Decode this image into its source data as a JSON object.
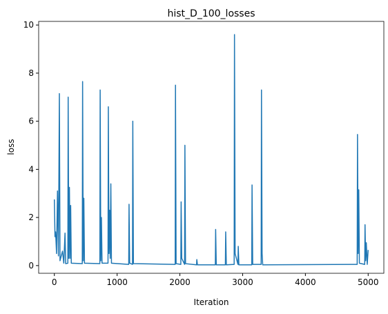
{
  "chart_data": {
    "type": "line",
    "title": "hist_D_100_losses",
    "xlabel": "Iteration",
    "ylabel": "loss",
    "color": "#1f77b4",
    "x": [
      0,
      10,
      20,
      35,
      50,
      65,
      80,
      90,
      130,
      150,
      170,
      180,
      215,
      220,
      230,
      240,
      250,
      260,
      270,
      445,
      450,
      460,
      470,
      480,
      725,
      730,
      740,
      750,
      760,
      855,
      860,
      870,
      880,
      890,
      900,
      910,
      1185,
      1190,
      1200,
      1245,
      1250,
      1260,
      1925,
      1930,
      1940,
      2015,
      2020,
      2030,
      2075,
      2080,
      2090,
      2265,
      2270,
      2280,
      2565,
      2570,
      2580,
      2725,
      2730,
      2740,
      2865,
      2870,
      2880,
      2925,
      2930,
      2940,
      3145,
      3150,
      3160,
      3295,
      3300,
      3310,
      3320,
      4825,
      4830,
      4840,
      4850,
      4860,
      4945,
      4950,
      4960,
      4970,
      4985,
      5000
    ],
    "values": [
      2.75,
      1.2,
      1.4,
      0.5,
      3.1,
      0.4,
      7.15,
      0.2,
      0.6,
      0.1,
      1.35,
      0.08,
      0.1,
      7.0,
      0.3,
      3.25,
      0.3,
      2.5,
      0.1,
      0.08,
      7.65,
      0.2,
      2.8,
      0.1,
      0.08,
      7.3,
      0.2,
      2.0,
      0.1,
      0.1,
      6.6,
      0.5,
      2.3,
      0.3,
      3.4,
      0.1,
      0.05,
      2.55,
      0.1,
      0.05,
      6.0,
      0.08,
      0.05,
      7.5,
      0.08,
      0.05,
      2.65,
      0.3,
      0.05,
      5.0,
      0.08,
      0.03,
      0.25,
      0.03,
      0.03,
      1.5,
      0.03,
      0.03,
      1.4,
      0.03,
      0.05,
      9.6,
      0.5,
      0.05,
      0.8,
      0.03,
      0.03,
      3.35,
      0.05,
      0.05,
      7.3,
      0.5,
      0.03,
      0.05,
      5.45,
      0.5,
      3.15,
      0.1,
      0.05,
      1.7,
      0.2,
      0.95,
      0.05,
      0.65
    ],
    "xlim": [
      -250,
      5250
    ],
    "ylim": [
      -0.32,
      10.15
    ],
    "xticks": [
      0,
      1000,
      2000,
      3000,
      4000,
      5000
    ],
    "yticks": [
      0,
      2,
      4,
      6,
      8,
      10
    ]
  }
}
